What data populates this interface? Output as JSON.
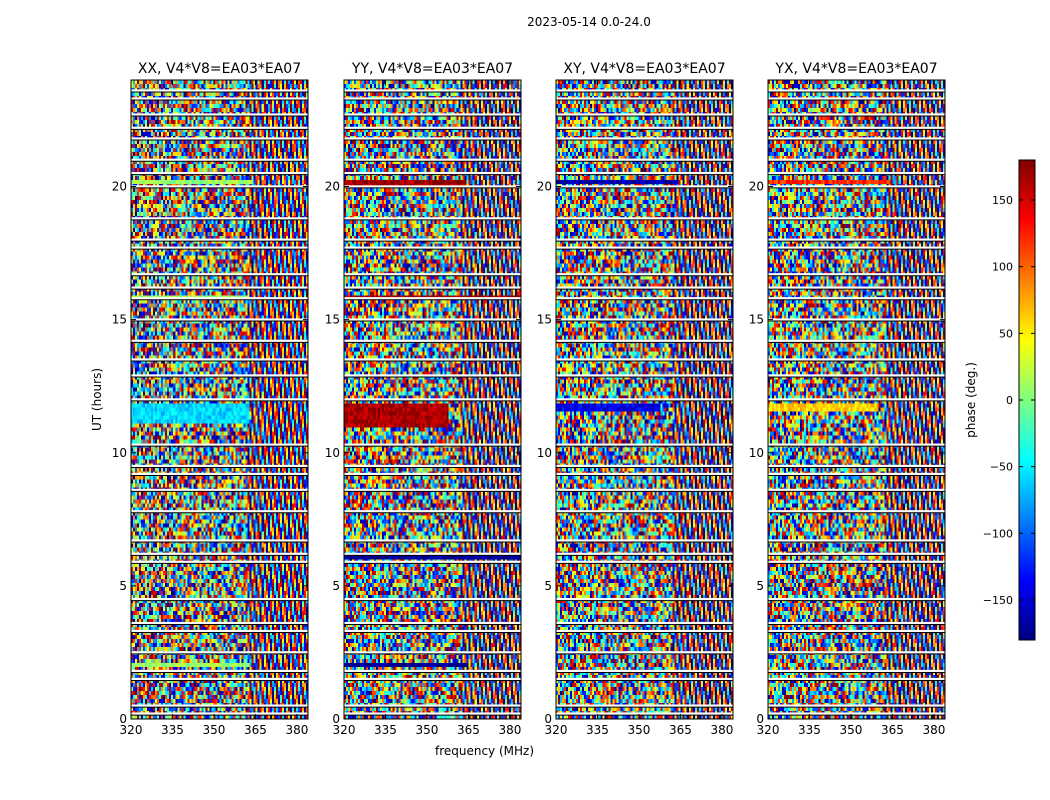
{
  "figure": {
    "suptitle": "2023-05-14 0.0-24.0",
    "colorbar": {
      "label": "phase (deg.)",
      "range": [
        -180,
        180
      ],
      "ticks": [
        150,
        100,
        50,
        0,
        -50,
        -100,
        -150
      ],
      "tick_labels": [
        "150",
        "100",
        "50",
        "0",
        "−50",
        "−100",
        "−150"
      ],
      "colormap": [
        "#00007f",
        "#0000ff",
        "#007fff",
        "#00ffff",
        "#7fff7f",
        "#ffff00",
        "#ff7f00",
        "#ff0000",
        "#7f0000"
      ]
    }
  },
  "chart_data": [
    {
      "type": "heatmap",
      "title": "XX, V4*V8=EA03*EA07",
      "xlabel": "",
      "ylabel": "UT (hours)",
      "xlim": [
        320,
        384
      ],
      "ylim": [
        0,
        24
      ],
      "xticks": [
        320,
        335,
        350,
        365,
        380
      ],
      "yticks": [
        0,
        5,
        10,
        15,
        20
      ],
      "value": "phase (deg.)",
      "noise": "random phase, with fringe striping above ~362 MHz",
      "coherent_bands": [
        {
          "ut": [
            11.1,
            11.9
          ],
          "freq": [
            320,
            363
          ],
          "phase": -60
        },
        {
          "ut": [
            15.7,
            15.9
          ],
          "freq": [
            320,
            363
          ],
          "phase": 10
        },
        {
          "ut": [
            20.1,
            20.3
          ],
          "freq": [
            320,
            364
          ],
          "phase": 10
        },
        {
          "ut": [
            1.9,
            2.1
          ],
          "freq": [
            320,
            363
          ],
          "phase": 10
        }
      ],
      "flagged_ut_hours": [
        0.2,
        0.5,
        1.5,
        1.8,
        2.5,
        3.3,
        3.6,
        4.5,
        5.9,
        6.2,
        6.7,
        7.8,
        8.6,
        9.2,
        9.5,
        10.3,
        12.0,
        12.9,
        13.5,
        14.2,
        15.0,
        15.8,
        16.2,
        16.7,
        17.7,
        18.0,
        18.8,
        20.0,
        20.5,
        21.0,
        21.8,
        22.2,
        22.7,
        23.3,
        23.6
      ]
    },
    {
      "type": "heatmap",
      "title": "YY, V4*V8=EA03*EA07",
      "xlabel": "frequency (MHz)",
      "ylabel": "",
      "xlim": [
        320,
        384
      ],
      "ylim": [
        0,
        24
      ],
      "xticks": [
        320,
        335,
        350,
        365,
        380
      ],
      "yticks": [
        0,
        5,
        10,
        15,
        20
      ],
      "value": "phase (deg.)",
      "noise": "random phase, with fringe striping above ~362 MHz",
      "coherent_bands": [
        {
          "ut": [
            11.0,
            11.9
          ],
          "freq": [
            320,
            358
          ],
          "phase": 165
        },
        {
          "ut": [
            15.7,
            15.9
          ],
          "freq": [
            320,
            384
          ],
          "phase": 170
        },
        {
          "ut": [
            20.0,
            20.3
          ],
          "freq": [
            320,
            364
          ],
          "phase": 170
        },
        {
          "ut": [
            1.9,
            2.1
          ],
          "freq": [
            320,
            364
          ],
          "phase": -170
        },
        {
          "ut": [
            6.0,
            6.2
          ],
          "freq": [
            320,
            384
          ],
          "phase": -170
        }
      ],
      "flagged_ut_hours": [
        0.2,
        0.5,
        1.5,
        1.8,
        2.5,
        3.3,
        3.6,
        4.5,
        5.9,
        6.2,
        6.7,
        7.8,
        8.6,
        9.2,
        9.5,
        10.3,
        12.0,
        12.9,
        13.5,
        14.2,
        15.0,
        15.8,
        16.2,
        16.7,
        17.7,
        18.0,
        18.8,
        20.0,
        20.5,
        21.0,
        21.8,
        22.2,
        22.7,
        23.3,
        23.6
      ]
    },
    {
      "type": "heatmap",
      "title": "XY, V4*V8=EA03*EA07",
      "xlabel": "",
      "ylabel": "",
      "xlim": [
        320,
        384
      ],
      "ylim": [
        0,
        24
      ],
      "xticks": [
        320,
        335,
        350,
        365,
        380
      ],
      "yticks": [
        0,
        5,
        10,
        15,
        20
      ],
      "value": "phase (deg.)",
      "noise": "random phase, with fringe striping above ~362 MHz",
      "coherent_bands": [
        {
          "ut": [
            20.1,
            20.3
          ],
          "freq": [
            320,
            364
          ],
          "phase": -160
        },
        {
          "ut": [
            11.6,
            11.8
          ],
          "freq": [
            320,
            358
          ],
          "phase": -140
        }
      ],
      "flagged_ut_hours": [
        0.2,
        0.5,
        1.5,
        1.8,
        2.5,
        3.3,
        3.6,
        4.5,
        5.9,
        6.2,
        6.7,
        7.8,
        8.6,
        9.2,
        9.5,
        10.3,
        12.0,
        12.9,
        13.5,
        14.2,
        15.0,
        15.8,
        16.2,
        16.7,
        17.7,
        18.0,
        18.8,
        20.0,
        20.5,
        21.0,
        21.8,
        22.2,
        22.7,
        23.3,
        23.6
      ]
    },
    {
      "type": "heatmap",
      "title": "YX, V4*V8=EA03*EA07",
      "xlabel": "",
      "ylabel": "",
      "xlim": [
        320,
        384
      ],
      "ylim": [
        0,
        24
      ],
      "xticks": [
        320,
        335,
        350,
        365,
        380
      ],
      "yticks": [
        0,
        5,
        10,
        15,
        20
      ],
      "value": "phase (deg.)",
      "noise": "random phase, with fringe striping above ~362 MHz",
      "coherent_bands": [
        {
          "ut": [
            11.5,
            11.8
          ],
          "freq": [
            320,
            360
          ],
          "phase": 60
        },
        {
          "ut": [
            20.1,
            20.3
          ],
          "freq": [
            320,
            364
          ],
          "phase": 120
        }
      ],
      "flagged_ut_hours": [
        0.2,
        0.5,
        1.5,
        1.8,
        2.5,
        3.3,
        3.6,
        4.5,
        5.9,
        6.2,
        6.7,
        7.8,
        8.6,
        9.2,
        9.5,
        10.3,
        12.0,
        12.9,
        13.5,
        14.2,
        15.0,
        15.8,
        16.2,
        16.7,
        17.7,
        18.0,
        18.8,
        20.0,
        20.5,
        21.0,
        21.8,
        22.2,
        22.7,
        23.3,
        23.6
      ]
    }
  ]
}
